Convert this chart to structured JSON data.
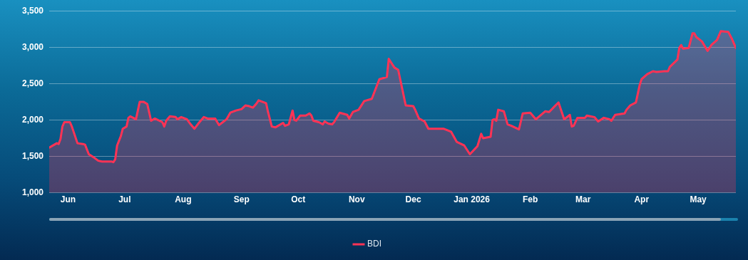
{
  "chart_data": {
    "type": "area",
    "legend": "bottom",
    "grid": "y",
    "xlim": [
      "2025-05-22",
      "2026-05-21"
    ],
    "xticks": [
      {
        "value": "2025-06-01",
        "label": "Jun"
      },
      {
        "value": "2025-07-01",
        "label": "Jul"
      },
      {
        "value": "2025-08-01",
        "label": "Aug"
      },
      {
        "value": "2025-09-01",
        "label": "Sep"
      },
      {
        "value": "2025-10-01",
        "label": "Oct"
      },
      {
        "value": "2025-11-01",
        "label": "Nov"
      },
      {
        "value": "2025-12-01",
        "label": "Dec"
      },
      {
        "value": "2026-01-01",
        "label": "Jan 2026"
      },
      {
        "value": "2026-02-01",
        "label": "Feb"
      },
      {
        "value": "2026-03-01",
        "label": "Mar"
      },
      {
        "value": "2026-04-01",
        "label": "Apr"
      },
      {
        "value": "2026-05-01",
        "label": "May"
      }
    ],
    "ylim": [
      1000,
      3500
    ],
    "yticks": [
      {
        "value": 1000,
        "label": "1,000"
      },
      {
        "value": 1500,
        "label": "1,500"
      },
      {
        "value": 2000,
        "label": "2,000"
      },
      {
        "value": 2500,
        "label": "2,500"
      },
      {
        "value": 3000,
        "label": "3,000"
      },
      {
        "value": 3500,
        "label": "3,500"
      }
    ],
    "x": [
      "2025-05-22",
      "2025-05-26",
      "2025-05-27",
      "2025-05-28",
      "2025-05-29",
      "2025-05-30",
      "2025-06-02",
      "2025-06-03",
      "2025-06-06",
      "2025-06-09",
      "2025-06-10",
      "2025-06-12",
      "2025-06-15",
      "2025-06-17",
      "2025-06-19",
      "2025-06-24",
      "2025-06-25",
      "2025-06-26",
      "2025-06-27",
      "2025-06-29",
      "2025-06-30",
      "2025-07-02",
      "2025-07-03",
      "2025-07-04",
      "2025-07-07",
      "2025-07-08",
      "2025-07-09",
      "2025-07-11",
      "2025-07-13",
      "2025-07-15",
      "2025-07-17",
      "2025-07-21",
      "2025-07-22",
      "2025-07-23",
      "2025-07-25",
      "2025-07-28",
      "2025-07-29",
      "2025-07-31",
      "2025-08-03",
      "2025-08-05",
      "2025-08-07",
      "2025-08-09",
      "2025-08-12",
      "2025-08-14",
      "2025-08-18",
      "2025-08-20",
      "2025-08-22",
      "2025-08-24",
      "2025-08-26",
      "2025-08-29",
      "2025-09-01",
      "2025-09-03",
      "2025-09-05",
      "2025-09-07",
      "2025-09-09",
      "2025-09-10",
      "2025-09-14",
      "2025-09-15",
      "2025-09-17",
      "2025-09-19",
      "2025-09-23",
      "2025-09-24",
      "2025-09-26",
      "2025-09-28",
      "2025-09-29",
      "2025-09-30",
      "2025-10-02",
      "2025-10-05",
      "2025-10-07",
      "2025-10-08",
      "2025-10-09",
      "2025-10-12",
      "2025-10-14",
      "2025-10-15",
      "2025-10-17",
      "2025-10-19",
      "2025-10-20",
      "2025-10-23",
      "2025-10-27",
      "2025-10-28",
      "2025-10-30",
      "2025-11-02",
      "2025-11-05",
      "2025-11-09",
      "2025-11-13",
      "2025-11-17",
      "2025-11-18",
      "2025-11-19",
      "2025-11-21",
      "2025-11-23",
      "2025-11-27",
      "2025-12-01",
      "2025-12-02",
      "2025-12-04",
      "2025-12-07",
      "2025-12-09",
      "2025-12-17",
      "2025-12-21",
      "2025-12-24",
      "2025-12-28",
      "2025-12-31",
      "2026-01-04",
      "2026-01-06",
      "2026-01-07",
      "2026-01-11",
      "2026-01-12",
      "2026-01-13",
      "2026-01-14",
      "2026-01-15",
      "2026-01-18",
      "2026-01-20",
      "2026-01-22",
      "2026-01-26",
      "2026-01-28",
      "2026-02-01",
      "2026-02-04",
      "2026-02-09",
      "2026-02-11",
      "2026-02-14",
      "2026-02-16",
      "2026-02-19",
      "2026-02-22",
      "2026-02-23",
      "2026-02-24",
      "2026-02-26",
      "2026-03-02",
      "2026-03-03",
      "2026-03-07",
      "2026-03-09",
      "2026-03-12",
      "2026-03-15",
      "2026-03-16",
      "2026-03-18",
      "2026-03-23",
      "2026-03-24",
      "2026-03-26",
      "2026-03-29",
      "2026-03-31",
      "2026-04-01",
      "2026-04-04",
      "2026-04-07",
      "2026-04-09",
      "2026-04-13",
      "2026-04-15",
      "2026-04-16",
      "2026-04-20",
      "2026-04-21",
      "2026-04-22",
      "2026-04-23",
      "2026-04-26",
      "2026-04-28",
      "2026-04-29",
      "2026-04-30",
      "2026-05-03",
      "2026-05-06",
      "2026-05-08",
      "2026-05-11",
      "2026-05-13",
      "2026-05-17",
      "2026-05-19",
      "2026-05-21"
    ],
    "series": [
      {
        "name": "BDI",
        "color": "#ff3355",
        "values": [
          1620,
          1680,
          1670,
          1740,
          1910,
          1970,
          1970,
          1910,
          1680,
          1670,
          1660,
          1530,
          1480,
          1440,
          1430,
          1430,
          1420,
          1460,
          1650,
          1780,
          1880,
          1910,
          2030,
          2050,
          2010,
          2130,
          2250,
          2250,
          2220,
          1990,
          2020,
          1970,
          1910,
          1990,
          2050,
          2040,
          2010,
          2040,
          2010,
          1940,
          1880,
          1950,
          2040,
          2020,
          2020,
          1930,
          1970,
          2010,
          2100,
          2130,
          2150,
          2200,
          2190,
          2170,
          2230,
          2270,
          2230,
          2110,
          1910,
          1900,
          1960,
          1920,
          1940,
          2130,
          2000,
          1990,
          2060,
          2060,
          2090,
          2060,
          1990,
          1970,
          1940,
          1980,
          1950,
          1940,
          1970,
          2100,
          2070,
          2020,
          2110,
          2140,
          2260,
          2290,
          2560,
          2590,
          2840,
          2800,
          2720,
          2690,
          2200,
          2190,
          2140,
          2020,
          1980,
          1880,
          1880,
          1840,
          1700,
          1650,
          1530,
          1640,
          1810,
          1750,
          1770,
          2000,
          2010,
          1990,
          2140,
          2120,
          1940,
          1920,
          1870,
          2090,
          2100,
          2010,
          2120,
          2110,
          2190,
          2240,
          2010,
          2070,
          1910,
          1920,
          2030,
          2030,
          2060,
          2040,
          1980,
          2030,
          2010,
          1990,
          2070,
          2090,
          2140,
          2200,
          2240,
          2480,
          2560,
          2630,
          2670,
          2660,
          2670,
          2670,
          2730,
          2830,
          2990,
          3030,
          2980,
          2990,
          3190,
          3190,
          3140,
          3080,
          2950,
          3030,
          3100,
          3220,
          3210,
          3110,
          2990
        ]
      }
    ]
  }
}
